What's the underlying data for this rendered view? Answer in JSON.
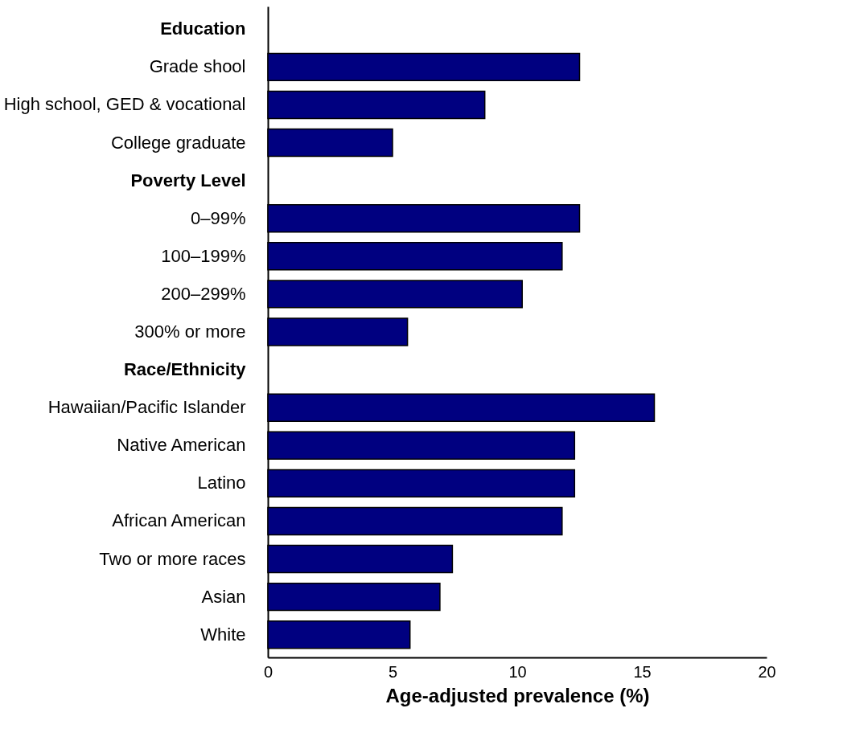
{
  "chart_data": {
    "type": "bar",
    "orientation": "horizontal",
    "categories": [
      "Education",
      "Grade shool",
      "High school, GED & vocational",
      "College graduate",
      "Poverty Level",
      "0–99%",
      "100–199%",
      "200–299%",
      "300% or more",
      "Race/Ethnicity",
      "Hawaiian/Pacific Islander",
      "Native American",
      "Latino",
      "African American",
      "Two or more races",
      "Asian",
      "White"
    ],
    "values": [
      null,
      12.5,
      8.7,
      5.0,
      null,
      12.5,
      11.8,
      10.2,
      5.6,
      null,
      15.5,
      12.3,
      12.3,
      11.8,
      7.4,
      6.9,
      5.7
    ],
    "color": "#000080",
    "xlabel": "Age-adjusted prevalence (%)",
    "xlim": [
      0,
      20
    ],
    "xticks": [
      0,
      5,
      10,
      15,
      20
    ],
    "grid": false
  }
}
